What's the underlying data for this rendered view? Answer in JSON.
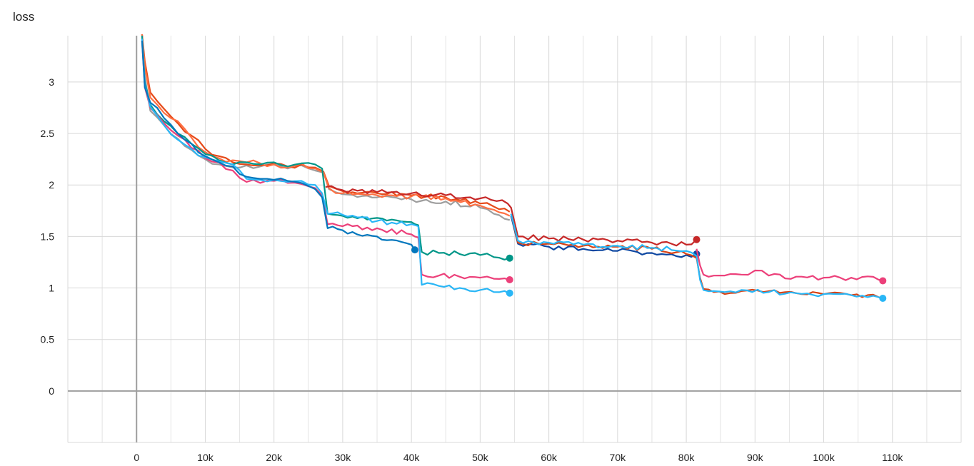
{
  "chart_data": {
    "type": "line",
    "title": "loss",
    "xlabel": "",
    "ylabel": "",
    "xlim": [
      -10000,
      120000
    ],
    "ylim": [
      -0.5,
      3.45
    ],
    "grid": true,
    "legend": "none",
    "x_ticks": [
      0,
      10000,
      20000,
      30000,
      40000,
      50000,
      60000,
      70000,
      80000,
      90000,
      100000,
      110000
    ],
    "x_tick_labels": [
      "0",
      "10k",
      "20k",
      "30k",
      "40k",
      "50k",
      "60k",
      "70k",
      "80k",
      "90k",
      "100k",
      "110k"
    ],
    "y_ticks": [
      0,
      0.5,
      1,
      1.5,
      2,
      2.5,
      3
    ],
    "y_tick_labels": [
      "0",
      "0.5",
      "1",
      "1.5",
      "2",
      "2.5",
      "3"
    ],
    "series": [
      {
        "color": "#9e9e9e",
        "end_marker": false,
        "x": [
          800,
          1200,
          2000,
          4000,
          6000,
          8000,
          10000,
          12000,
          14000,
          16000,
          18000,
          20000,
          22000,
          24000,
          26000,
          27200,
          28000,
          30000,
          35000,
          40000,
          45000,
          50000,
          52000,
          54300
        ],
        "y": [
          3.5,
          3.05,
          2.72,
          2.58,
          2.45,
          2.34,
          2.25,
          2.2,
          2.17,
          2.19,
          2.18,
          2.2,
          2.16,
          2.19,
          2.14,
          2.12,
          1.96,
          1.91,
          1.88,
          1.86,
          1.84,
          1.78,
          1.72,
          1.66
        ]
      },
      {
        "color": "#e64a19",
        "end_marker": false,
        "x": [
          800,
          1200,
          2000,
          4000,
          6000,
          8000,
          10000,
          12000,
          14000,
          16000,
          18000,
          20000,
          22000,
          24000,
          26000,
          27200,
          28000,
          30000,
          35000,
          40000,
          45000,
          50000,
          52000,
          54300
        ],
        "y": [
          3.6,
          3.2,
          2.9,
          2.74,
          2.6,
          2.48,
          2.35,
          2.28,
          2.22,
          2.2,
          2.19,
          2.21,
          2.18,
          2.2,
          2.17,
          2.13,
          1.99,
          1.94,
          1.92,
          1.9,
          1.88,
          1.82,
          1.79,
          1.74
        ]
      },
      {
        "color": "#ff7043",
        "end_marker": false,
        "x": [
          800,
          1200,
          2000,
          4000,
          6000,
          8000,
          10000,
          12000,
          14000,
          16000,
          18000,
          20000,
          22000,
          24000,
          26000,
          27200,
          28000,
          30000,
          35000,
          40000,
          45000,
          50000,
          52000,
          54300
        ],
        "y": [
          3.55,
          3.15,
          2.85,
          2.7,
          2.62,
          2.46,
          2.32,
          2.26,
          2.24,
          2.22,
          2.21,
          2.2,
          2.17,
          2.21,
          2.16,
          2.12,
          1.97,
          1.92,
          1.9,
          1.89,
          1.87,
          1.8,
          1.76,
          1.7
        ]
      },
      {
        "color": "#009688",
        "end_marker": true,
        "x": [
          800,
          1200,
          2000,
          4000,
          6000,
          8000,
          10000,
          12000,
          14000,
          16000,
          18000,
          20000,
          22000,
          24000,
          26000,
          27000,
          27800,
          30000,
          35000,
          40000,
          40500,
          41000,
          41500,
          44000,
          47000,
          50000,
          52000,
          54300
        ],
        "y": [
          3.45,
          3.0,
          2.78,
          2.62,
          2.5,
          2.4,
          2.3,
          2.24,
          2.2,
          2.22,
          2.2,
          2.22,
          2.18,
          2.21,
          2.2,
          2.16,
          1.72,
          1.7,
          1.68,
          1.64,
          1.62,
          1.61,
          1.35,
          1.34,
          1.33,
          1.32,
          1.3,
          1.29
        ]
      },
      {
        "color": "#ec407a",
        "end_marker": true,
        "x": [
          800,
          1200,
          2000,
          4000,
          6000,
          8000,
          10000,
          12000,
          14000,
          16000,
          18000,
          20000,
          22000,
          24000,
          26000,
          27000,
          27800,
          30000,
          35000,
          40000,
          40500,
          41000,
          41500,
          44000,
          47000,
          50000,
          52000,
          54300
        ],
        "y": [
          3.4,
          2.95,
          2.75,
          2.6,
          2.48,
          2.36,
          2.26,
          2.22,
          2.14,
          2.03,
          2.02,
          2.04,
          2.02,
          2.01,
          1.97,
          1.9,
          1.62,
          1.6,
          1.58,
          1.52,
          1.5,
          1.49,
          1.13,
          1.12,
          1.11,
          1.1,
          1.09,
          1.08
        ]
      },
      {
        "color": "#29b6f6",
        "end_marker": true,
        "x": [
          800,
          1200,
          2000,
          4000,
          6000,
          8000,
          10000,
          12000,
          14000,
          16000,
          18000,
          20000,
          22000,
          24000,
          26000,
          27000,
          27800,
          30000,
          35000,
          40000,
          40500,
          41000,
          41500,
          44000,
          47000,
          50000,
          52000,
          54300
        ],
        "y": [
          3.42,
          2.98,
          2.76,
          2.58,
          2.44,
          2.35,
          2.27,
          2.23,
          2.2,
          2.06,
          2.05,
          2.05,
          2.03,
          2.04,
          2.0,
          1.92,
          1.72,
          1.71,
          1.65,
          1.62,
          1.61,
          1.6,
          1.03,
          1.02,
          1.0,
          0.98,
          0.96,
          0.95
        ]
      },
      {
        "color": "#0277bd",
        "end_marker": true,
        "x": [
          800,
          1200,
          2000,
          4000,
          6000,
          8000,
          10000,
          12000,
          14000,
          16000,
          18000,
          20000,
          22000,
          24000,
          26000,
          27000,
          27800,
          30000,
          35000,
          40000,
          40500
        ],
        "y": [
          3.4,
          2.95,
          2.8,
          2.65,
          2.5,
          2.4,
          2.28,
          2.22,
          2.18,
          2.08,
          2.06,
          2.05,
          2.04,
          2.02,
          1.96,
          1.88,
          1.58,
          1.56,
          1.5,
          1.42,
          1.37
        ]
      },
      {
        "color": "#c62828",
        "end_marker": true,
        "x": [
          27500,
          30000,
          35000,
          40000,
          45000,
          50000,
          54000,
          54500,
          55500,
          60000,
          65000,
          70000,
          75000,
          80000,
          81500
        ],
        "y": [
          1.98,
          1.95,
          1.93,
          1.92,
          1.9,
          1.87,
          1.82,
          1.78,
          1.5,
          1.48,
          1.47,
          1.46,
          1.44,
          1.42,
          1.47
        ]
      },
      {
        "color": "#0d47a1",
        "end_marker": true,
        "x": [
          54500,
          55500,
          60000,
          65000,
          70000,
          75000,
          80000,
          81500
        ],
        "y": [
          1.7,
          1.43,
          1.4,
          1.38,
          1.36,
          1.34,
          1.32,
          1.33
        ]
      },
      {
        "color": "#d84315",
        "end_marker": false,
        "x": [
          54500,
          55500,
          60000,
          65000,
          70000,
          75000,
          80000,
          81500,
          82000,
          82500,
          84000,
          88000,
          92000,
          96000,
          100000,
          104000,
          108000,
          108600
        ],
        "y": [
          1.72,
          1.44,
          1.43,
          1.41,
          1.4,
          1.38,
          1.33,
          1.29,
          1.1,
          0.99,
          0.96,
          0.97,
          0.97,
          0.95,
          0.94,
          0.93,
          0.91,
          0.9
        ]
      },
      {
        "color": "#29b6f6",
        "end_marker": true,
        "x": [
          54500,
          55500,
          60000,
          65000,
          70000,
          75000,
          80000,
          81500,
          82000,
          82500,
          84000,
          88000,
          92000,
          96000,
          100000,
          104000,
          108000,
          108600
        ],
        "y": [
          1.72,
          1.46,
          1.44,
          1.42,
          1.41,
          1.39,
          1.36,
          1.31,
          1.08,
          0.98,
          0.97,
          0.98,
          0.96,
          0.95,
          0.94,
          0.93,
          0.91,
          0.9
        ]
      },
      {
        "color": "#ec407a",
        "end_marker": true,
        "x": [
          81500,
          82000,
          82500,
          84000,
          88000,
          90000,
          92000,
          96000,
          100000,
          104000,
          108000,
          108600
        ],
        "y": [
          1.38,
          1.22,
          1.13,
          1.12,
          1.13,
          1.17,
          1.12,
          1.11,
          1.1,
          1.1,
          1.08,
          1.07
        ]
      }
    ]
  }
}
